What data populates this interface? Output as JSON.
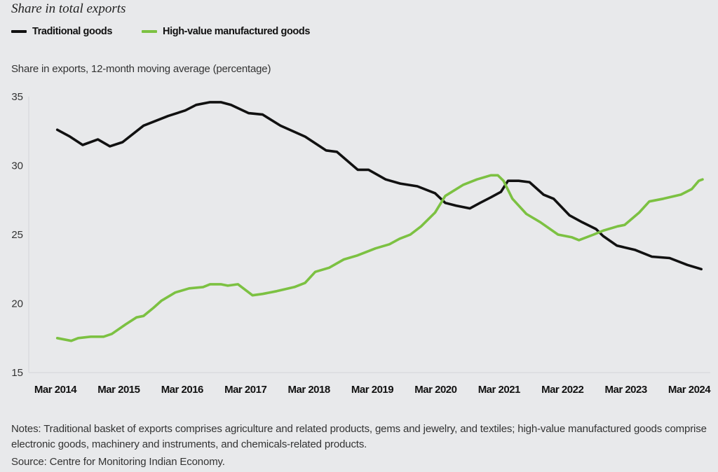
{
  "header": {
    "title": "Share in total exports",
    "subtitle": "Share in exports, 12-month moving average (percentage)"
  },
  "legend": [
    {
      "label": "Traditional goods",
      "color": "#111111"
    },
    {
      "label": "High-value manufactured goods",
      "color": "#7cc142"
    }
  ],
  "footer": {
    "notes": "Notes: Traditional basket of exports comprises agriculture and related products, gems and jewelry, and textiles; high-value manufactured goods comprise electronic goods, machinery and instruments, and chemicals-related products.",
    "source": "Source: Centre for Monitoring Indian Economy."
  },
  "chart_data": {
    "type": "line",
    "title": "Share in total exports",
    "ylabel": "Share in exports, 12-month moving average (percentage)",
    "xlabel": "",
    "ylim": [
      15,
      35
    ],
    "yticks": [
      15,
      20,
      25,
      30,
      35
    ],
    "xlim": [
      2013.9,
      2024.55
    ],
    "xticks": [
      {
        "x": 2014.17,
        "label": "Mar 2014"
      },
      {
        "x": 2015.17,
        "label": "Mar 2015"
      },
      {
        "x": 2016.17,
        "label": "Mar 2016"
      },
      {
        "x": 2017.17,
        "label": "Mar 2017"
      },
      {
        "x": 2018.17,
        "label": "Mar 2018"
      },
      {
        "x": 2019.17,
        "label": "Mar 2019"
      },
      {
        "x": 2020.17,
        "label": "Mar 2020"
      },
      {
        "x": 2021.17,
        "label": "Mar 2021"
      },
      {
        "x": 2022.17,
        "label": "Mar 2022"
      },
      {
        "x": 2023.17,
        "label": "Mar 2023"
      },
      {
        "x": 2024.17,
        "label": "Mar 2024"
      }
    ],
    "grid": false,
    "legend_position": "top-left",
    "series": [
      {
        "name": "Traditional goods",
        "color": "#111111",
        "x": [
          2014.2,
          2014.4,
          2014.6,
          2014.84,
          2015.03,
          2015.23,
          2015.56,
          2015.95,
          2016.22,
          2016.39,
          2016.61,
          2016.78,
          2016.94,
          2017.22,
          2017.44,
          2017.72,
          2018.11,
          2018.44,
          2018.61,
          2018.94,
          2019.11,
          2019.38,
          2019.61,
          2019.88,
          2020.16,
          2020.32,
          2020.49,
          2020.71,
          2020.87,
          2021.04,
          2021.2,
          2021.31,
          2021.48,
          2021.65,
          2021.87,
          2022.03,
          2022.28,
          2022.48,
          2022.7,
          2022.81,
          2023.03,
          2023.31,
          2023.58,
          2023.86,
          2024.14,
          2024.36
        ],
        "values": [
          32.6,
          32.1,
          31.5,
          31.9,
          31.4,
          31.7,
          32.9,
          33.6,
          34.0,
          34.4,
          34.6,
          34.6,
          34.4,
          33.8,
          33.7,
          32.9,
          32.1,
          31.1,
          31.0,
          29.7,
          29.7,
          29.0,
          28.7,
          28.5,
          28.0,
          27.3,
          27.1,
          26.9,
          27.3,
          27.7,
          28.1,
          28.9,
          28.9,
          28.8,
          27.9,
          27.6,
          26.4,
          25.9,
          25.4,
          24.9,
          24.2,
          23.9,
          23.4,
          23.3,
          22.8,
          22.5
        ]
      },
      {
        "name": "High-value manufactured goods",
        "color": "#7cc142",
        "x": [
          2014.2,
          2014.42,
          2014.53,
          2014.73,
          2014.93,
          2015.06,
          2015.28,
          2015.45,
          2015.56,
          2015.72,
          2015.84,
          2016.06,
          2016.28,
          2016.5,
          2016.61,
          2016.78,
          2016.89,
          2017.05,
          2017.28,
          2017.44,
          2017.66,
          2017.94,
          2018.11,
          2018.27,
          2018.49,
          2018.72,
          2018.94,
          2019.22,
          2019.44,
          2019.6,
          2019.77,
          2019.94,
          2020.16,
          2020.32,
          2020.6,
          2020.82,
          2021.04,
          2021.15,
          2021.24,
          2021.38,
          2021.6,
          2021.82,
          2022.1,
          2022.32,
          2022.43,
          2022.66,
          2022.82,
          2023.04,
          2023.15,
          2023.38,
          2023.54,
          2023.76,
          2024.04,
          2024.21,
          2024.32,
          2024.38
        ],
        "values": [
          17.5,
          17.3,
          17.5,
          17.6,
          17.6,
          17.8,
          18.5,
          19.0,
          19.1,
          19.7,
          20.2,
          20.8,
          21.1,
          21.2,
          21.4,
          21.4,
          21.3,
          21.4,
          20.6,
          20.7,
          20.9,
          21.2,
          21.5,
          22.3,
          22.6,
          23.2,
          23.5,
          24.0,
          24.3,
          24.7,
          25.0,
          25.6,
          26.6,
          27.8,
          28.6,
          29.0,
          29.3,
          29.3,
          28.9,
          27.6,
          26.5,
          25.9,
          25.0,
          24.8,
          24.6,
          25.0,
          25.3,
          25.6,
          25.7,
          26.6,
          27.4,
          27.6,
          27.9,
          28.3,
          28.9,
          29.0
        ]
      }
    ]
  }
}
